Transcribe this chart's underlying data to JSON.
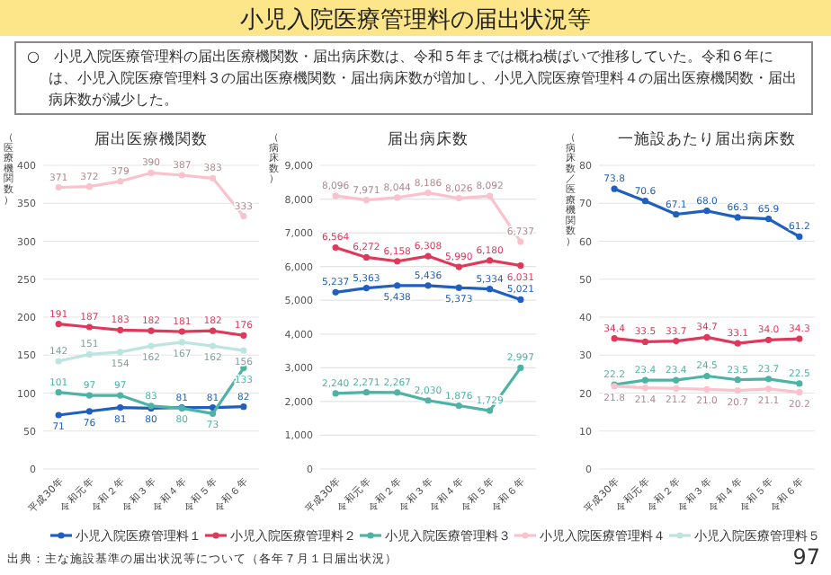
{
  "chart_data": [
    {
      "type": "other",
      "title": "小児入院医療管理料の届出状況等",
      "subtitle": "○　小児入院医療管理料の届出医療機関数・届出病床数は、令和５年までは概ね横ばいで推移していた。令和６年には、小児入院医療管理料３の届出医療機関数・届出病床数が増加し、小児入院医療管理料４の届出医療機関数・届出病床数が減少した。",
      "annotations": [
        "出典：主な施設基準の届出状況等について（各年７月１日届出状況）",
        "97"
      ]
    },
    {
      "type": "line",
      "title": "届出医療機関数",
      "ylabel": "（医療機関数）",
      "categories": [
        "平成30年",
        "令和元年",
        "令和２年",
        "令和３年",
        "令和４年",
        "令和５年",
        "令和６年"
      ],
      "ylim": [
        0,
        400
      ],
      "yticks": [
        0,
        50,
        100,
        150,
        200,
        250,
        300,
        350,
        400
      ],
      "grid": "y",
      "legend": "bottom",
      "marker": "circle",
      "data_labels": true,
      "series": [
        {
          "name": "小児入院医療管理料１",
          "color": "#1f5fbf",
          "values": [
            71,
            76,
            81,
            80,
            81,
            81,
            82
          ]
        },
        {
          "name": "小児入院医療管理料２",
          "color": "#e0385a",
          "values": [
            191,
            187,
            183,
            182,
            181,
            182,
            176
          ]
        },
        {
          "name": "小児入院医療管理料３",
          "color": "#4db3a5",
          "values": [
            101,
            97,
            97,
            83,
            80,
            73,
            133
          ]
        },
        {
          "name": "小児入院医療管理料４",
          "color": "#f9c2cc",
          "values": [
            371,
            372,
            379,
            390,
            387,
            383,
            333
          ]
        },
        {
          "name": "小児入院医療管理料５",
          "color": "#bde5e0",
          "values": [
            142,
            151,
            154,
            162,
            167,
            162,
            156
          ]
        }
      ]
    },
    {
      "type": "line",
      "title": "届出病床数",
      "ylabel": "（病床数）",
      "categories": [
        "平成30年",
        "令和元年",
        "令和２年",
        "令和３年",
        "令和４年",
        "令和５年",
        "令和６年"
      ],
      "ylim": [
        0,
        9000
      ],
      "yticks": [
        0,
        {
          "value": 1000,
          "label": "1,000"
        },
        {
          "value": 2000,
          "label": "2,000"
        },
        {
          "value": 3000,
          "label": "3,000"
        },
        {
          "value": 4000,
          "label": "4,000"
        },
        {
          "value": 5000,
          "label": "5,000"
        },
        {
          "value": 6000,
          "label": "6,000"
        },
        {
          "value": 7000,
          "label": "7,000"
        },
        {
          "value": 8000,
          "label": "8,000"
        },
        {
          "value": 9000,
          "label": "9,000"
        }
      ],
      "grid": "y",
      "legend": "bottom",
      "marker": "circle",
      "data_labels": false,
      "series": [
        {
          "name": "小児入院医療管理料１",
          "color": "#1f5fbf",
          "values": [
            5237,
            5363,
            5438,
            5436,
            5373,
            5334,
            5021
          ],
          "value_labels": [
            "5,237",
            "5,363",
            "5,438",
            "5,436",
            "5,373",
            "5,334",
            "5,021"
          ]
        },
        {
          "name": "小児入院医療管理料２",
          "color": "#e0385a",
          "values": [
            6564,
            6272,
            6158,
            6308,
            5990,
            6180,
            6031
          ],
          "value_labels": [
            "6,564",
            "6,272",
            "6,158",
            "6,308",
            "5,990",
            "6,180",
            "6,031"
          ]
        },
        {
          "name": "小児入院医療管理料３",
          "color": "#4db3a5",
          "values": [
            2240,
            2271,
            2267,
            2030,
            1876,
            1729,
            2997
          ],
          "value_labels": [
            "2,240",
            "2,271",
            "2,267",
            "2,030",
            "1,876",
            "1,729",
            "2,997"
          ]
        },
        {
          "name": "小児入院医療管理料４",
          "color": "#f9c2cc",
          "values": [
            8096,
            7971,
            8044,
            8186,
            8026,
            8092,
            6737
          ],
          "value_labels": [
            "8,096",
            "7,971",
            "8,044",
            "8,186",
            "8,026",
            "8,092",
            "6,737"
          ]
        }
      ]
    },
    {
      "type": "line",
      "title": "一施設あたり届出病床数",
      "ylabel": "（病床数／医療機関数）",
      "categories": [
        "平成30年",
        "令和元年",
        "令和２年",
        "令和３年",
        "令和４年",
        "令和５年",
        "令和６年"
      ],
      "ylim": [
        0,
        80
      ],
      "yticks": [
        0,
        10,
        20,
        30,
        40,
        50,
        60,
        70,
        80
      ],
      "grid": "y",
      "legend": "bottom",
      "marker": "circle",
      "data_labels": false,
      "series": [
        {
          "name": "小児入院医療管理料１",
          "color": "#1f5fbf",
          "values": [
            73.8,
            70.6,
            67.1,
            68.0,
            66.3,
            65.9,
            61.2
          ],
          "value_labels": [
            "73.8",
            "70.6",
            "67.1",
            "68.0",
            "66.3",
            "65.9",
            "61.2"
          ]
        },
        {
          "name": "小児入院医療管理料２",
          "color": "#e0385a",
          "values": [
            34.4,
            33.5,
            33.7,
            34.7,
            33.1,
            34.0,
            34.3
          ],
          "value_labels": [
            "34.4",
            "33.5",
            "33.7",
            "34.7",
            "33.1",
            "34.0",
            "34.3"
          ]
        },
        {
          "name": "小児入院医療管理料３",
          "color": "#4db3a5",
          "values": [
            22.2,
            23.4,
            23.4,
            24.5,
            23.5,
            23.7,
            22.5
          ],
          "value_labels": [
            "22.2",
            "23.4",
            "23.4",
            "24.5",
            "23.5",
            "23.7",
            "22.5"
          ]
        },
        {
          "name": "小児入院医療管理料４",
          "color": "#f9c2cc",
          "values": [
            21.8,
            21.4,
            21.2,
            21.0,
            20.7,
            21.1,
            20.2
          ],
          "value_labels": [
            "21.8",
            "21.4",
            "21.2",
            "21.0",
            "20.7",
            "21.1",
            "20.2"
          ]
        }
      ]
    }
  ]
}
